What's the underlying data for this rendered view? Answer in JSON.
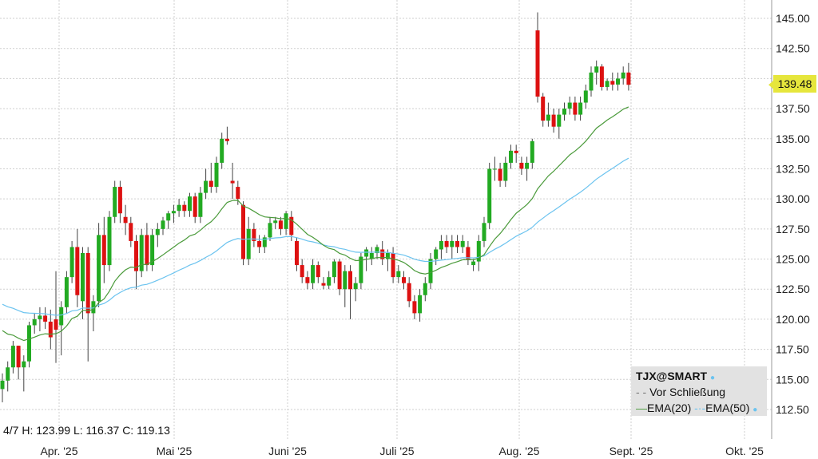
{
  "chart_data": {
    "type": "candlestick",
    "symbol": "TJX@SMART",
    "y_ticks": [
      "145.00",
      "142.50",
      "140.00",
      "137.50",
      "135.00",
      "132.50",
      "130.00",
      "127.50",
      "125.00",
      "122.50",
      "120.00",
      "117.50",
      "115.00",
      "112.50"
    ],
    "ylim": [
      111,
      146.8
    ],
    "x_tick_labels": [
      "Apr. '25",
      "Mai '25",
      "Juni '25",
      "Juli '25",
      "Aug. '25",
      "Sept. '25",
      "Okt. '25"
    ],
    "grid": true,
    "last_price": "139.48",
    "info_line": "4/7 H: 123.99 L: 116.37 C: 119.13",
    "legend": {
      "title": "TJX@SMART",
      "prev_close": "Vor Schließung",
      "ema20": "EMA(20)",
      "ema50": "EMA(50)"
    },
    "colors": {
      "up": "#22aa22",
      "down": "#dd1111",
      "ema20": "#4a9a3a",
      "ema50": "#6bc3ef",
      "last_price_bg": "#e6e63c"
    },
    "candles": [
      [
        114.2,
        115.5,
        113.1,
        114.9
      ],
      [
        114.9,
        116.5,
        114.0,
        116.0
      ],
      [
        116.0,
        118.2,
        115.5,
        117.8
      ],
      [
        117.8,
        117.8,
        115.0,
        116.0
      ],
      [
        116.0,
        117.0,
        114.0,
        116.5
      ],
      [
        116.5,
        119.8,
        116.0,
        119.5
      ],
      [
        119.5,
        120.5,
        118.8,
        120.0
      ],
      [
        120.0,
        121.0,
        119.0,
        120.3
      ],
      [
        120.3,
        121.0,
        119.2,
        119.8
      ],
      [
        119.8,
        120.8,
        117.5,
        118.5
      ],
      [
        119.99,
        123.99,
        116.37,
        119.13
      ],
      [
        119.5,
        121.5,
        117.0,
        121.0
      ],
      [
        121.0,
        124.0,
        120.5,
        123.5
      ],
      [
        123.5,
        126.5,
        123.0,
        126.0
      ],
      [
        126.0,
        127.5,
        121.0,
        122.0
      ],
      [
        121.5,
        126.0,
        120.0,
        125.5
      ],
      [
        125.5,
        126.0,
        116.5,
        120.5
      ],
      [
        120.5,
        122.0,
        119.0,
        121.5
      ],
      [
        121.5,
        128.0,
        121.0,
        127.0
      ],
      [
        127.0,
        128.5,
        123.0,
        124.5
      ],
      [
        124.5,
        129.0,
        124.0,
        128.5
      ],
      [
        128.5,
        131.5,
        128.0,
        131.0
      ],
      [
        131.0,
        131.5,
        128.0,
        128.8
      ],
      [
        128.5,
        129.5,
        127.0,
        128.0
      ],
      [
        128.0,
        128.5,
        126.0,
        126.5
      ],
      [
        126.5,
        127.0,
        122.5,
        124.0
      ],
      [
        124.0,
        127.5,
        123.5,
        127.0
      ],
      [
        127.0,
        128.0,
        124.0,
        124.5
      ],
      [
        124.5,
        127.5,
        124.0,
        127.0
      ],
      [
        127.0,
        128.0,
        126.0,
        127.5
      ],
      [
        127.5,
        128.5,
        127.0,
        128.2
      ],
      [
        128.2,
        129.0,
        127.5,
        128.8
      ],
      [
        128.8,
        129.5,
        128.0,
        129.0
      ],
      [
        129.0,
        130.0,
        128.5,
        129.5
      ],
      [
        129.5,
        129.8,
        128.5,
        129.0
      ],
      [
        129.0,
        130.5,
        128.5,
        130.2
      ],
      [
        130.2,
        130.5,
        128.0,
        128.5
      ],
      [
        128.5,
        131.0,
        128.0,
        130.5
      ],
      [
        130.5,
        132.5,
        130.0,
        131.5
      ],
      [
        131.5,
        133.0,
        130.5,
        131.0
      ],
      [
        131.0,
        133.5,
        130.5,
        133.0
      ],
      [
        133.0,
        135.5,
        132.5,
        135.0
      ],
      [
        135.0,
        136.0,
        134.5,
        134.8
      ],
      [
        131.5,
        133.0,
        130.0,
        131.3
      ],
      [
        131.0,
        131.5,
        129.5,
        130.0
      ],
      [
        129.5,
        129.8,
        124.5,
        125.0
      ],
      [
        125.0,
        128.5,
        124.5,
        127.5
      ],
      [
        127.5,
        128.0,
        126.0,
        126.5
      ],
      [
        126.5,
        127.0,
        125.5,
        126.0
      ],
      [
        126.0,
        127.0,
        125.5,
        126.8
      ],
      [
        126.8,
        128.5,
        126.5,
        128.0
      ],
      [
        128.0,
        128.5,
        127.5,
        128.2
      ],
      [
        128.2,
        128.5,
        127.0,
        127.5
      ],
      [
        127.5,
        129.0,
        127.0,
        128.8
      ],
      [
        128.5,
        129.0,
        126.5,
        127.0
      ],
      [
        126.5,
        126.8,
        124.0,
        124.5
      ],
      [
        124.5,
        125.0,
        123.0,
        123.5
      ],
      [
        123.5,
        124.0,
        122.5,
        123.0
      ],
      [
        123.0,
        125.0,
        122.5,
        124.5
      ],
      [
        124.5,
        124.8,
        123.0,
        123.5
      ],
      [
        123.0,
        123.5,
        122.5,
        122.8
      ],
      [
        122.8,
        124.0,
        122.5,
        123.5
      ],
      [
        123.5,
        125.0,
        123.0,
        124.8
      ],
      [
        124.8,
        125.0,
        122.0,
        122.5
      ],
      [
        122.5,
        124.5,
        121.0,
        124.0
      ],
      [
        124.0,
        124.5,
        120.0,
        122.5
      ],
      [
        122.5,
        123.5,
        121.5,
        123.0
      ],
      [
        123.0,
        125.5,
        122.5,
        125.2
      ],
      [
        125.2,
        126.0,
        124.0,
        125.8
      ],
      [
        125.0,
        126.0,
        124.5,
        125.5
      ],
      [
        125.5,
        126.2,
        125.0,
        126.0
      ],
      [
        125.8,
        126.5,
        124.5,
        125.0
      ],
      [
        125.0,
        125.8,
        124.0,
        125.5
      ],
      [
        125.5,
        126.0,
        123.0,
        123.5
      ],
      [
        123.5,
        124.5,
        123.0,
        124.0
      ],
      [
        123.5,
        124.0,
        122.5,
        123.0
      ],
      [
        123.0,
        123.5,
        121.0,
        121.5
      ],
      [
        121.5,
        122.0,
        120.0,
        120.5
      ],
      [
        120.5,
        122.5,
        119.8,
        122.0
      ],
      [
        122.0,
        123.5,
        121.5,
        123.0
      ],
      [
        123.0,
        125.5,
        122.5,
        125.0
      ],
      [
        125.0,
        126.0,
        124.5,
        125.8
      ],
      [
        125.8,
        127.0,
        125.0,
        126.5
      ],
      [
        126.5,
        127.0,
        125.5,
        126.0
      ],
      [
        126.0,
        127.0,
        125.0,
        126.5
      ],
      [
        126.5,
        127.0,
        125.5,
        126.0
      ],
      [
        126.0,
        127.0,
        125.5,
        126.5
      ],
      [
        126.0,
        126.5,
        124.5,
        125.0
      ],
      [
        124.5,
        125.0,
        124.0,
        124.8
      ],
      [
        124.8,
        127.0,
        124.0,
        126.5
      ],
      [
        126.5,
        128.5,
        126.0,
        128.0
      ],
      [
        128.0,
        133.0,
        127.5,
        132.5
      ],
      [
        132.5,
        133.5,
        131.5,
        132.5
      ],
      [
        132.5,
        133.0,
        131.0,
        131.5
      ],
      [
        131.5,
        133.5,
        131.0,
        133.0
      ],
      [
        133.0,
        134.5,
        132.5,
        134.0
      ],
      [
        134.0,
        134.5,
        133.0,
        133.8
      ],
      [
        133.0,
        133.5,
        132.0,
        132.5
      ],
      [
        132.5,
        133.5,
        131.5,
        133.0
      ],
      [
        133.0,
        135.0,
        132.5,
        134.8
      ],
      [
        144.0,
        145.5,
        138.0,
        138.5
      ],
      [
        138.5,
        138.8,
        136.0,
        136.5
      ],
      [
        136.5,
        138.0,
        136.0,
        137.0
      ],
      [
        137.0,
        137.5,
        135.5,
        136.0
      ],
      [
        136.0,
        137.5,
        135.0,
        137.0
      ],
      [
        137.0,
        138.0,
        136.5,
        137.5
      ],
      [
        137.5,
        138.5,
        137.0,
        138.0
      ],
      [
        138.0,
        138.5,
        136.5,
        137.0
      ],
      [
        137.0,
        138.5,
        136.5,
        138.0
      ],
      [
        138.0,
        139.5,
        137.5,
        139.0
      ],
      [
        139.0,
        141.0,
        138.5,
        140.5
      ],
      [
        140.5,
        141.5,
        139.5,
        141.0
      ],
      [
        141.0,
        141.2,
        139.0,
        139.3
      ],
      [
        139.3,
        140.0,
        139.0,
        139.8
      ],
      [
        139.8,
        140.5,
        139.0,
        139.5
      ],
      [
        139.5,
        140.5,
        139.0,
        140.0
      ],
      [
        140.0,
        141.0,
        139.5,
        140.5
      ],
      [
        140.5,
        141.3,
        139.0,
        139.48
      ]
    ]
  }
}
